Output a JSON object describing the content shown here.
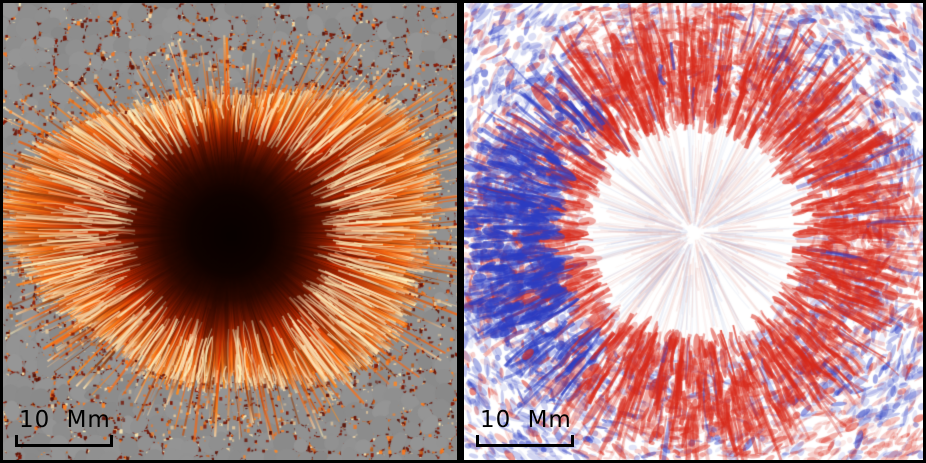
{
  "figure": {
    "border_color": "#000000"
  },
  "panels": [
    {
      "id": "intensity",
      "scale_label": "10 Mm",
      "scale_bar_color": "#000000",
      "palette": {
        "quiet_gray": "#8e8e8e",
        "lane_dark": "#6b1000",
        "lane_orange": "#e06a1c",
        "lane_cream": "#f6d6a4",
        "penumbra_dark": "#4a0a00",
        "penumbra_red": "#a82400",
        "penumbra_orange": "#e55f12",
        "filament_cream": "#ffddb0",
        "umbra_core": "#0a0100"
      }
    },
    {
      "id": "doppler",
      "scale_label": "10 Mm",
      "scale_bar_color": "#000000",
      "palette": {
        "background": "#ffffff",
        "redshift": "#d8291a",
        "blueshift": "#2d3dc2",
        "pale_red": "#e8b0a8",
        "pale_blue": "#b0bce0"
      }
    }
  ]
}
